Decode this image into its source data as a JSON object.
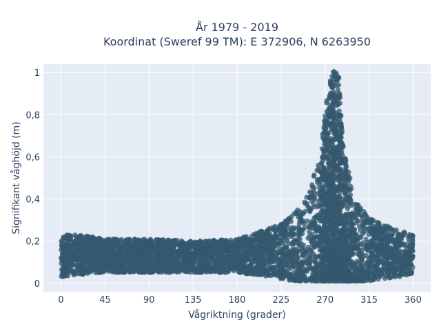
{
  "chart_data": {
    "type": "scatter",
    "title_line1": "År 1979 - 2019",
    "title_line2": "Koordinat (Sweref 99 TM): E 372906, N 6263950",
    "xlabel": "Vågriktning (grader)",
    "ylabel": "Signifikant våghöjd (m)",
    "xlim": [
      -18,
      378
    ],
    "ylim": [
      -0.04,
      1.04
    ],
    "x_ticks": [
      0,
      45,
      90,
      135,
      180,
      225,
      270,
      315,
      360
    ],
    "x_tick_labels": [
      "0",
      "45",
      "90",
      "135",
      "180",
      "225",
      "270",
      "315",
      "360"
    ],
    "y_ticks": [
      0,
      0.2,
      0.4,
      0.6,
      0.8,
      1
    ],
    "y_tick_labels": [
      "0",
      "0,2",
      "0,4",
      "0,6",
      "0,8",
      "1"
    ],
    "grid": true,
    "legend": "none",
    "marker_color": "#34586e",
    "background": "#e5ecf6",
    "envelope": {
      "direction_deg": [
        0,
        20,
        45,
        90,
        135,
        180,
        200,
        225,
        240,
        255,
        265,
        272,
        277,
        280,
        284,
        290,
        300,
        315,
        330,
        345,
        360
      ],
      "min_height_m": [
        0.03,
        0.04,
        0.05,
        0.05,
        0.05,
        0.05,
        0.04,
        0.02,
        0.01,
        0.01,
        0.01,
        0.01,
        0.01,
        0.01,
        0.01,
        0.01,
        0.01,
        0.01,
        0.02,
        0.03,
        0.04
      ],
      "max_height_m": [
        0.23,
        0.23,
        0.21,
        0.21,
        0.2,
        0.21,
        0.24,
        0.28,
        0.34,
        0.45,
        0.62,
        0.88,
        1.0,
        1.01,
        0.98,
        0.62,
        0.4,
        0.31,
        0.28,
        0.25,
        0.23
      ]
    }
  }
}
